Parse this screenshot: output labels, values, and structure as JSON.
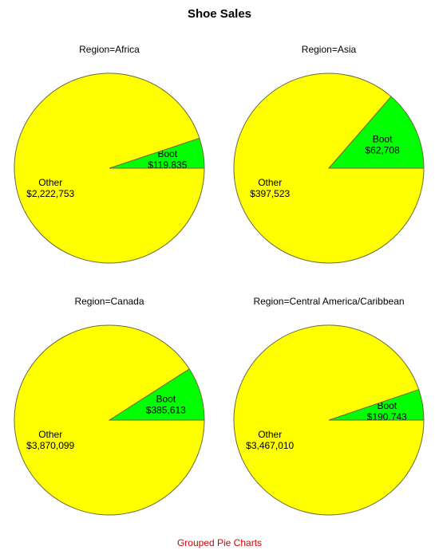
{
  "title": "Shoe Sales",
  "footnote": "Grouped Pie Charts",
  "colors": {
    "Boot": "#00ff00",
    "Other": "#ffff00",
    "outline": "#6b6b3a"
  },
  "chart_data": [
    {
      "type": "pie",
      "title": "Region=Africa",
      "slices": [
        {
          "label": "Boot",
          "value": 119835,
          "value_label": "$119,835"
        },
        {
          "label": "Other",
          "value": 2222753,
          "value_label": "$2,222,753"
        }
      ]
    },
    {
      "type": "pie",
      "title": "Region=Asia",
      "slices": [
        {
          "label": "Boot",
          "value": 62708,
          "value_label": "$62,708"
        },
        {
          "label": "Other",
          "value": 397523,
          "value_label": "$397,523"
        }
      ]
    },
    {
      "type": "pie",
      "title": "Region=Canada",
      "slices": [
        {
          "label": "Boot",
          "value": 385613,
          "value_label": "$385,613"
        },
        {
          "label": "Other",
          "value": 3870099,
          "value_label": "$3,870,099"
        }
      ]
    },
    {
      "type": "pie",
      "title": "Region=Central America/Caribbean",
      "slices": [
        {
          "label": "Boot",
          "value": 190743,
          "value_label": "$190,743"
        },
        {
          "label": "Other",
          "value": 3467010,
          "value_label": "$3,467,010"
        }
      ]
    }
  ]
}
